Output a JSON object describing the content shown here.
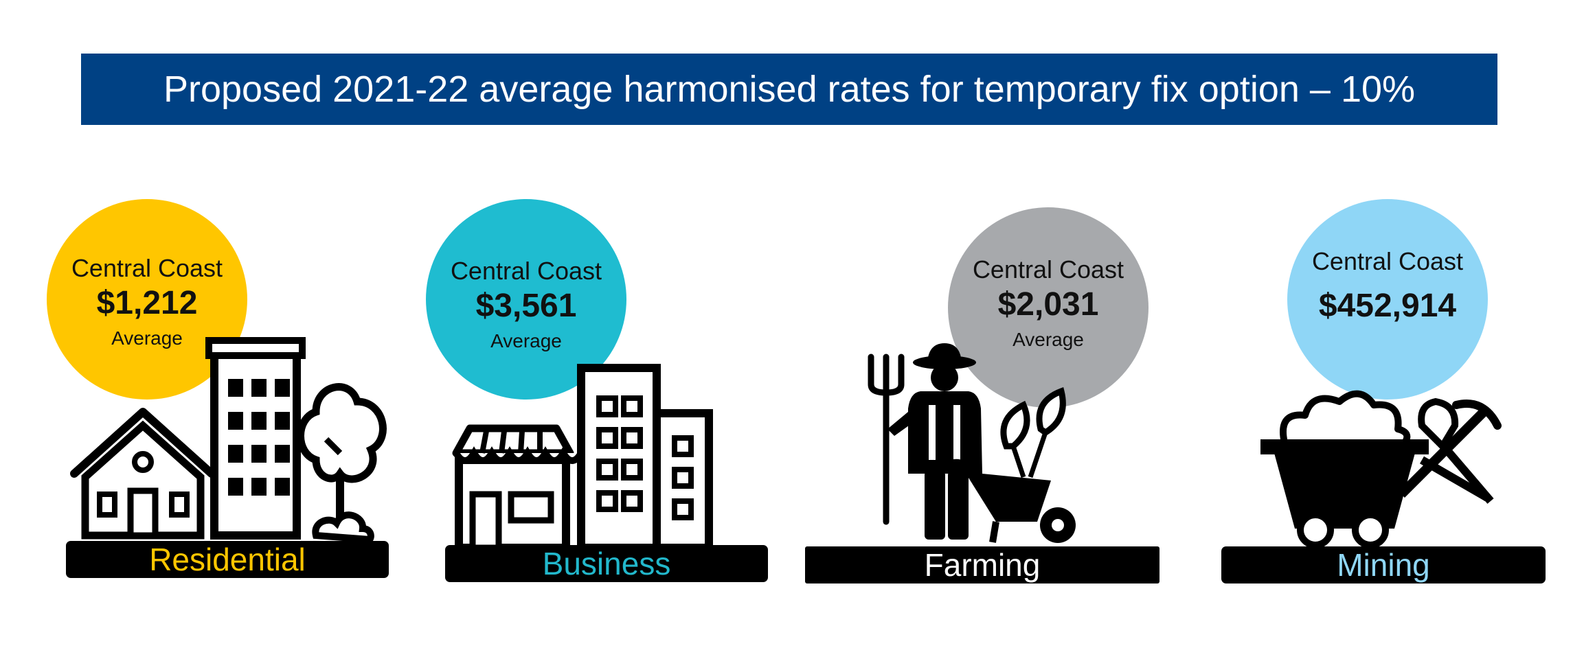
{
  "title": "Proposed 2021-22 average harmonised rates for temporary fix option – 10%",
  "categories": [
    {
      "name": "Residential",
      "location": "Central Coast",
      "value": "$1,212",
      "note": "Average",
      "circle_color": "#FFC600",
      "label_color": "#FFC600",
      "icon": "houses-and-tree-icon"
    },
    {
      "name": "Business",
      "location": "Central Coast",
      "value": "$3,561",
      "note": "Average",
      "circle_color": "#1FBCD0",
      "label_color": "#22B8CC",
      "icon": "shop-and-buildings-icon"
    },
    {
      "name": "Farming",
      "location": "Central Coast",
      "value": "$2,031",
      "note": "Average",
      "circle_color": "#A7A9AC",
      "label_color": "#FFFFFF",
      "icon": "farmer-with-wheelbarrow-icon"
    },
    {
      "name": "Mining",
      "location": "Central Coast",
      "value": "$452,914",
      "note": "",
      "circle_color": "#8FD6F6",
      "label_color": "#8FD6F6",
      "icon": "mine-cart-pickaxe-icon"
    }
  ]
}
